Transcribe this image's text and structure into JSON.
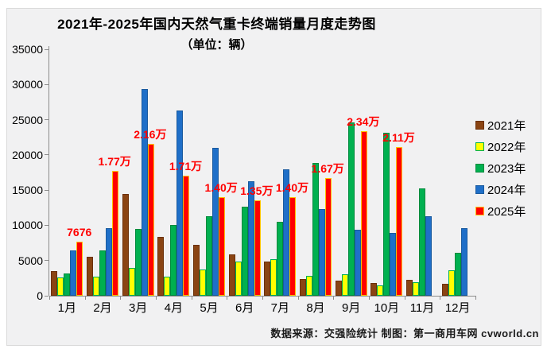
{
  "title": {
    "line1": "2021年-2025年国内天然气重卡终端销量月度走势图",
    "line2": "（单位：辆）"
  },
  "footer": "数据来源：交强险统计  制图：第一商用车网 cvworld.cn",
  "chart_data": {
    "type": "bar",
    "title": "2021年-2025年国内天然气重卡终端销量月度走势图",
    "subtitle": "（单位：辆）",
    "categories": [
      "1月",
      "2月",
      "3月",
      "4月",
      "5月",
      "6月",
      "7月",
      "8月",
      "9月",
      "10月",
      "11月",
      "12月"
    ],
    "series": [
      {
        "name": "2021年",
        "color": "#8A4413",
        "border": "#6B3009",
        "values": [
          3500,
          5500,
          14500,
          8300,
          7200,
          5900,
          4900,
          2400,
          2200,
          1800,
          2300,
          1700
        ]
      },
      {
        "name": "2022年",
        "color": "#FFFF00",
        "border": "#00B050",
        "values": [
          2600,
          2700,
          3900,
          2700,
          3700,
          4800,
          5200,
          2800,
          3000,
          1500,
          1900,
          3600
        ]
      },
      {
        "name": "2023年",
        "color": "#00B050",
        "border": "#008A3C",
        "values": [
          3200,
          6400,
          9500,
          10100,
          11300,
          12600,
          10500,
          18800,
          24600,
          23200,
          15200,
          6100
        ]
      },
      {
        "name": "2024年",
        "color": "#1F6FC8",
        "border": "#1A5A9E",
        "values": [
          6400,
          9600,
          29400,
          26300,
          21000,
          16300,
          17900,
          12300,
          9400,
          8900,
          11300,
          9600
        ]
      },
      {
        "name": "2025年",
        "color": "#FF0000",
        "border": "#FFC000",
        "values": [
          7676,
          17700,
          21600,
          17100,
          14000,
          13500,
          14000,
          16700,
          23400,
          21100,
          null,
          null
        ],
        "point_labels": [
          "7676",
          "1.77万",
          "2.16万",
          "1.71万",
          "1.40万",
          "1.35万",
          "1.40万",
          "1.67万",
          "2.34万",
          "2.11万",
          "",
          ""
        ]
      }
    ],
    "ylim": [
      0,
      35000
    ],
    "yticks": [
      0,
      5000,
      10000,
      15000,
      20000,
      25000,
      30000,
      35000
    ],
    "grid": "off",
    "legend_position": "right",
    "data_label_color": "#FF0000",
    "axis_color": "#8C8C8C",
    "background_color": "#F1F1F2"
  }
}
